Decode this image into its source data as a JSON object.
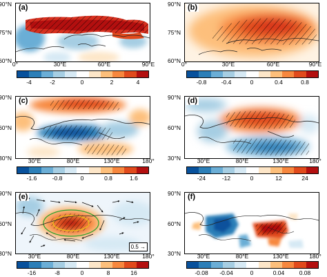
{
  "panels": {
    "a": {
      "label": "(a)",
      "lat_labels": [
        "90°N",
        "75°N",
        "60°N"
      ],
      "lon_labels": [
        "0°",
        "30°E",
        "60°E",
        "90°E"
      ],
      "colorbar_ticks": [
        "-4",
        "-2",
        "0",
        "2",
        "4"
      ]
    },
    "b": {
      "label": "(b)",
      "lat_labels": [
        "90°N",
        "75°N",
        "60°N"
      ],
      "lon_labels": [
        "0°",
        "30°E",
        "60°E",
        "90°E"
      ],
      "colorbar_ticks": [
        "-0.8",
        "-0.4",
        "0",
        "0.4",
        "0.8"
      ]
    },
    "c": {
      "label": "(c)",
      "lat_labels": [
        "90°N",
        "60°N",
        "30°N"
      ],
      "lon_labels": [
        "30°E",
        "80°E",
        "130°E",
        "180°"
      ],
      "colorbar_ticks": [
        "-1.6",
        "-0.8",
        "0",
        "0.8",
        "1.6"
      ]
    },
    "d": {
      "label": "(d)",
      "lat_labels": [
        "90°N",
        "60°N",
        "30°N"
      ],
      "lon_labels": [
        "30°E",
        "80°E",
        "130°E",
        "180°"
      ],
      "colorbar_ticks": [
        "-24",
        "-12",
        "0",
        "12",
        "24"
      ]
    },
    "e": {
      "label": "(e)",
      "lat_labels": [
        "90°N",
        "60°N",
        "30°N"
      ],
      "lon_labels": [
        "30°E",
        "80°E",
        "130°E",
        "180°"
      ],
      "colorbar_ticks": [
        "-16",
        "-8",
        "0",
        "8",
        "16"
      ],
      "reference_vector": "0.5"
    },
    "f": {
      "label": "(f)",
      "lat_labels": [
        "90°N",
        "60°N",
        "30°N"
      ],
      "lon_labels": [
        "30°E",
        "80°E",
        "130°E",
        "180°"
      ],
      "colorbar_ticks": [
        "-0.08",
        "-0.04",
        "0",
        "0.04",
        "0.08"
      ]
    }
  },
  "colormap": [
    "#08519c",
    "#2c7fb8",
    "#6baed6",
    "#a6cee3",
    "#d6e9f4",
    "#ffffff",
    "#fde6c8",
    "#fdbf7b",
    "#f7873e",
    "#e14a1c",
    "#b30f0f"
  ]
}
